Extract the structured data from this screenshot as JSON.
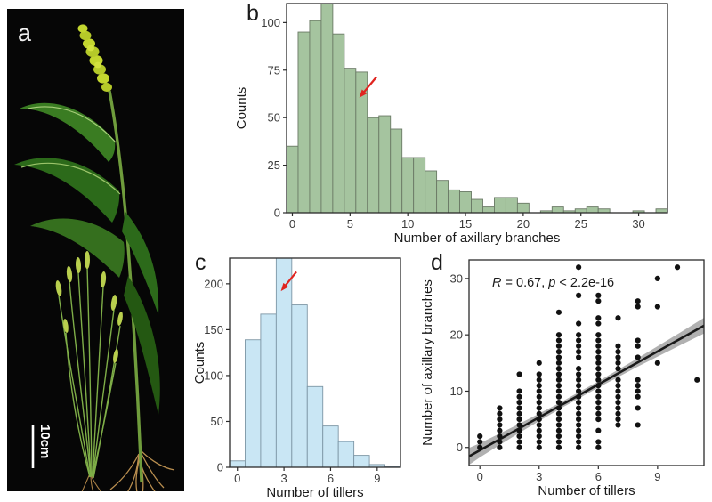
{
  "panels": {
    "a": {
      "label": "a",
      "scale_bar_label": "10cm"
    },
    "b": {
      "label": "b"
    },
    "c": {
      "label": "c"
    },
    "d": {
      "label": "d"
    }
  },
  "colors": {
    "green_bar_fill": "#a5c49f",
    "green_bar_stroke": "#6b7a66",
    "blue_bar_fill": "#c9e6f4",
    "blue_bar_stroke": "#7d96a5",
    "arrow_red": "#e02420",
    "axis": "#2b2b2b",
    "tick_text": "#3c3c3c",
    "dot": "#111111",
    "regression_line": "#1a1a1a",
    "ci_band": "#9e9e9e"
  },
  "chart_data": [
    {
      "panel": "b",
      "type": "bar",
      "title": "",
      "xlabel": "Number of axillary branches",
      "ylabel": "Counts",
      "categories": [
        0,
        1,
        2,
        3,
        4,
        5,
        6,
        7,
        8,
        9,
        10,
        11,
        12,
        13,
        14,
        15,
        16,
        17,
        18,
        19,
        20,
        21,
        22,
        23,
        24,
        25,
        26,
        27,
        28,
        29,
        30,
        31,
        32
      ],
      "values": [
        35,
        95,
        101,
        110,
        94,
        76,
        74,
        50,
        51,
        44,
        29,
        29,
        22,
        17,
        12,
        11,
        7,
        3,
        8,
        8,
        5,
        0,
        1,
        3,
        1,
        2,
        3,
        2,
        0,
        0,
        1,
        0,
        2
      ],
      "xlim": [
        -0.5,
        32.5
      ],
      "ylim": [
        0,
        110
      ],
      "x_ticks": [
        0,
        5,
        10,
        15,
        20,
        25,
        30
      ],
      "y_ticks": [
        0,
        25,
        50,
        75,
        100
      ],
      "grid": false,
      "bar_fill": "#a5c49f",
      "bar_stroke": "#6b7a66",
      "annotation_arrow": {
        "from_xy": [
          7.3,
          71.5
        ],
        "to_xy": [
          5.8,
          60.5
        ],
        "color": "#e02420"
      }
    },
    {
      "panel": "c",
      "type": "bar",
      "title": "",
      "xlabel": "Number of tillers",
      "ylabel": "Counts",
      "categories": [
        0,
        1,
        2,
        3,
        4,
        5,
        6,
        7,
        8,
        9,
        10
      ],
      "values": [
        7,
        139,
        167,
        230,
        177,
        88,
        45,
        28,
        13,
        3,
        1
      ],
      "xlim": [
        -0.5,
        10.5
      ],
      "ylim": [
        0,
        228
      ],
      "x_ticks": [
        0,
        3,
        6,
        9
      ],
      "y_ticks": [
        0,
        50,
        100,
        150,
        200
      ],
      "grid": false,
      "bar_fill": "#c9e6f4",
      "bar_stroke": "#7d96a5",
      "annotation_arrow": {
        "from_xy": [
          3.8,
          213
        ],
        "to_xy": [
          2.8,
          192
        ],
        "color": "#e02420"
      }
    },
    {
      "panel": "d",
      "type": "scatter",
      "title": "",
      "xlabel": "Number of tillers",
      "ylabel": "Number of axillary branches",
      "annotation": "R = 0.67, p < 2.2e-16",
      "r_label": "R",
      "r_mid": " = 0.67, ",
      "p_label": "p",
      "p_tail": " < 2.2e-16",
      "xlim": [
        -0.55,
        11.35
      ],
      "ylim": [
        -3.2,
        33.3
      ],
      "x_ticks": [
        0,
        3,
        6,
        9
      ],
      "y_ticks": [
        0,
        10,
        20,
        30
      ],
      "grid": false,
      "columns": [
        {
          "x": 0,
          "ys": [
            0,
            1,
            2
          ]
        },
        {
          "x": 1,
          "ys": [
            0,
            1,
            2,
            3,
            4,
            5,
            6,
            7
          ]
        },
        {
          "x": 2,
          "ys": [
            0,
            1,
            2,
            3,
            4,
            5,
            6,
            7,
            8,
            9,
            10,
            13
          ]
        },
        {
          "x": 3,
          "ys": [
            0,
            1,
            2,
            3,
            4,
            5,
            6,
            7,
            8,
            9,
            10,
            11,
            12,
            13,
            15
          ]
        },
        {
          "x": 4,
          "ys": [
            0,
            1,
            2,
            3,
            4,
            5,
            6,
            7,
            8,
            9,
            10,
            11,
            12,
            13,
            14,
            15,
            16,
            17,
            18,
            19,
            20,
            24
          ]
        },
        {
          "x": 5,
          "ys": [
            0,
            1,
            2,
            3,
            4,
            5,
            6,
            7,
            8,
            9,
            10,
            11,
            12,
            13,
            14,
            16,
            17,
            18,
            19,
            20,
            22,
            27,
            32
          ]
        },
        {
          "x": 6,
          "ys": [
            0,
            1,
            3,
            5,
            6,
            7,
            8,
            9,
            10,
            11,
            12,
            13,
            14,
            15,
            16,
            17,
            18,
            19,
            20,
            22,
            23,
            26,
            27
          ]
        },
        {
          "x": 7,
          "ys": [
            4,
            5,
            6,
            7,
            8,
            9,
            10,
            11,
            12,
            14,
            15,
            16,
            17,
            18,
            23
          ]
        },
        {
          "x": 8,
          "ys": [
            4,
            7,
            9,
            10,
            11,
            12,
            16,
            18,
            19,
            25,
            26
          ]
        },
        {
          "x": 9,
          "ys": [
            15,
            25,
            30
          ]
        },
        {
          "x": 10,
          "ys": [
            32
          ]
        },
        {
          "x": 11,
          "ys": [
            12
          ]
        }
      ],
      "regression": {
        "slope": 1.95,
        "intercept": -0.5,
        "x_range": [
          -0.55,
          11.35
        ]
      },
      "ci_band": {
        "x": [
          -0.55,
          0,
          2,
          4,
          6,
          8,
          10,
          11.35
        ],
        "half_width": [
          1.5,
          1.25,
          0.8,
          0.55,
          0.55,
          0.75,
          1.1,
          1.4
        ]
      }
    }
  ]
}
